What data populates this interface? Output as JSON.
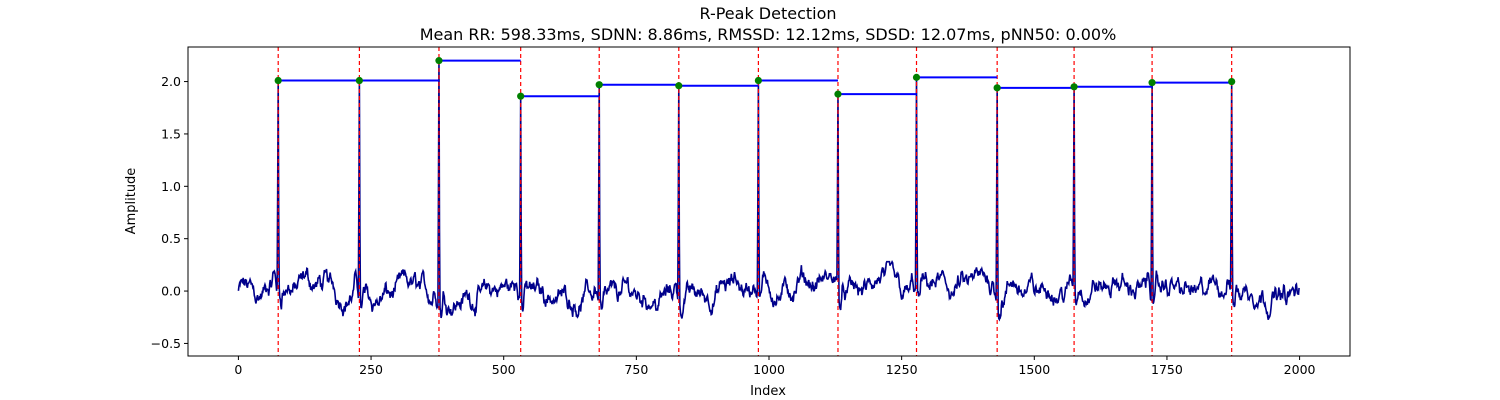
{
  "chart_data": {
    "type": "line",
    "title": "R-Peak Detection",
    "subtitle": "Mean RR: 598.33ms, SDNN: 8.86ms, RMSSD: 12.12ms, SDSD: 12.07ms, pNN50: 0.00%",
    "xlabel": "Index",
    "ylabel": "Amplitude",
    "xlim": [
      -95,
      2095
    ],
    "ylim": [
      -0.62,
      2.33
    ],
    "xticks": [
      0,
      250,
      500,
      750,
      1000,
      1250,
      1500,
      1750,
      2000
    ],
    "yticks": [
      -0.5,
      0.0,
      0.5,
      1.0,
      1.5,
      2.0
    ],
    "grid": false,
    "colors": {
      "signal": "#00008b",
      "peak_marker": "#008000",
      "peak_line": "#ff0000",
      "rr_segment": "#0000ff"
    },
    "signal": {
      "length": 2000,
      "baseline_min": -0.45,
      "baseline_max": 0.28
    },
    "peaks": [
      {
        "x": 75,
        "y": 2.01
      },
      {
        "x": 228,
        "y": 2.01
      },
      {
        "x": 378,
        "y": 2.2
      },
      {
        "x": 532,
        "y": 1.86
      },
      {
        "x": 680,
        "y": 1.97
      },
      {
        "x": 830,
        "y": 1.96
      },
      {
        "x": 980,
        "y": 2.01
      },
      {
        "x": 1130,
        "y": 1.88
      },
      {
        "x": 1278,
        "y": 2.04
      },
      {
        "x": 1430,
        "y": 1.94
      },
      {
        "x": 1575,
        "y": 1.95
      },
      {
        "x": 1722,
        "y": 1.99
      },
      {
        "x": 1872,
        "y": 2.0
      }
    ]
  }
}
